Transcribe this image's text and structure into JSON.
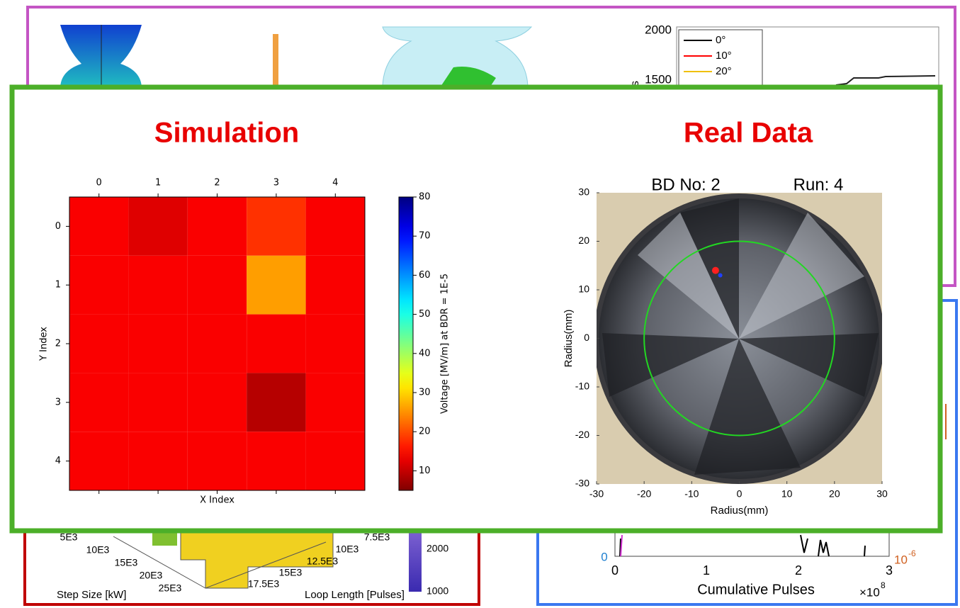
{
  "background": {
    "top_right_plot": {
      "yticks": [
        "2000",
        "1500"
      ],
      "ylabel_fragment": "s",
      "legend": [
        {
          "name": "0°",
          "color": "#000000"
        },
        {
          "name": "10°",
          "color": "#ff0000"
        },
        {
          "name": "20°",
          "color": "#f0c000"
        }
      ]
    },
    "bottom_left_plot": {
      "step_ticks": [
        "5E3",
        "10E3",
        "15E3",
        "20E3",
        "25E3"
      ],
      "step_label": "Step Size [kW]",
      "loop_ticks": [
        "7.5E3",
        "10E3",
        "12.5E3",
        "15E3",
        "17.5E3"
      ],
      "loop_label": "Loop Length [Pulses]",
      "colorbar_ticks": [
        "2000",
        "1000"
      ]
    },
    "bottom_right_plot": {
      "xticks": [
        "0",
        "1",
        "2",
        "3"
      ],
      "xlabel": "Cumulative Pulses",
      "x_multiplier": "×10",
      "x_exponent": "8",
      "right_axis_label": "10",
      "right_exponent": "-6",
      "left_tick": "0"
    }
  },
  "chart_data": [
    {
      "type": "heatmap",
      "title": "Simulation",
      "xlabel": "X Index",
      "ylabel": "Y Index",
      "xticks": [
        0,
        1,
        2,
        3,
        4
      ],
      "yticks": [
        0,
        1,
        2,
        3,
        4
      ],
      "xlim": [
        -0.5,
        4.5
      ],
      "ylim": [
        4.5,
        -0.5
      ],
      "values": [
        [
          14,
          12,
          14,
          18,
          14
        ],
        [
          14,
          14,
          14,
          26,
          14
        ],
        [
          14,
          14,
          14,
          14,
          14
        ],
        [
          14,
          14,
          14,
          9,
          14
        ],
        [
          14,
          14,
          14,
          14,
          14
        ]
      ],
      "colorbar_label": "Voltage [MV/m] at BDR = 1E-5",
      "clim": [
        5,
        80
      ],
      "cticks": [
        10,
        20,
        30,
        40,
        50,
        60,
        70,
        80
      ]
    },
    {
      "type": "scatter",
      "title": "Real Data",
      "subtitle_left": "BD No: 2",
      "subtitle_right": "Run: 4",
      "xlabel": "Radius(mm)",
      "ylabel": "Radius(mm)",
      "xlim": [
        -30,
        30
      ],
      "ylim": [
        -30,
        30
      ],
      "xticks": [
        -30,
        -20,
        -10,
        0,
        10,
        20,
        30
      ],
      "yticks": [
        -30,
        -20,
        -10,
        0,
        10,
        20,
        30
      ],
      "reference_circle": {
        "radius": 20,
        "color": "#22d822"
      },
      "series": [
        {
          "color": "#ff2020",
          "x": [
            -5
          ],
          "y": [
            14
          ]
        },
        {
          "color": "#2040ff",
          "x": [
            -4
          ],
          "y": [
            13
          ]
        }
      ]
    }
  ]
}
